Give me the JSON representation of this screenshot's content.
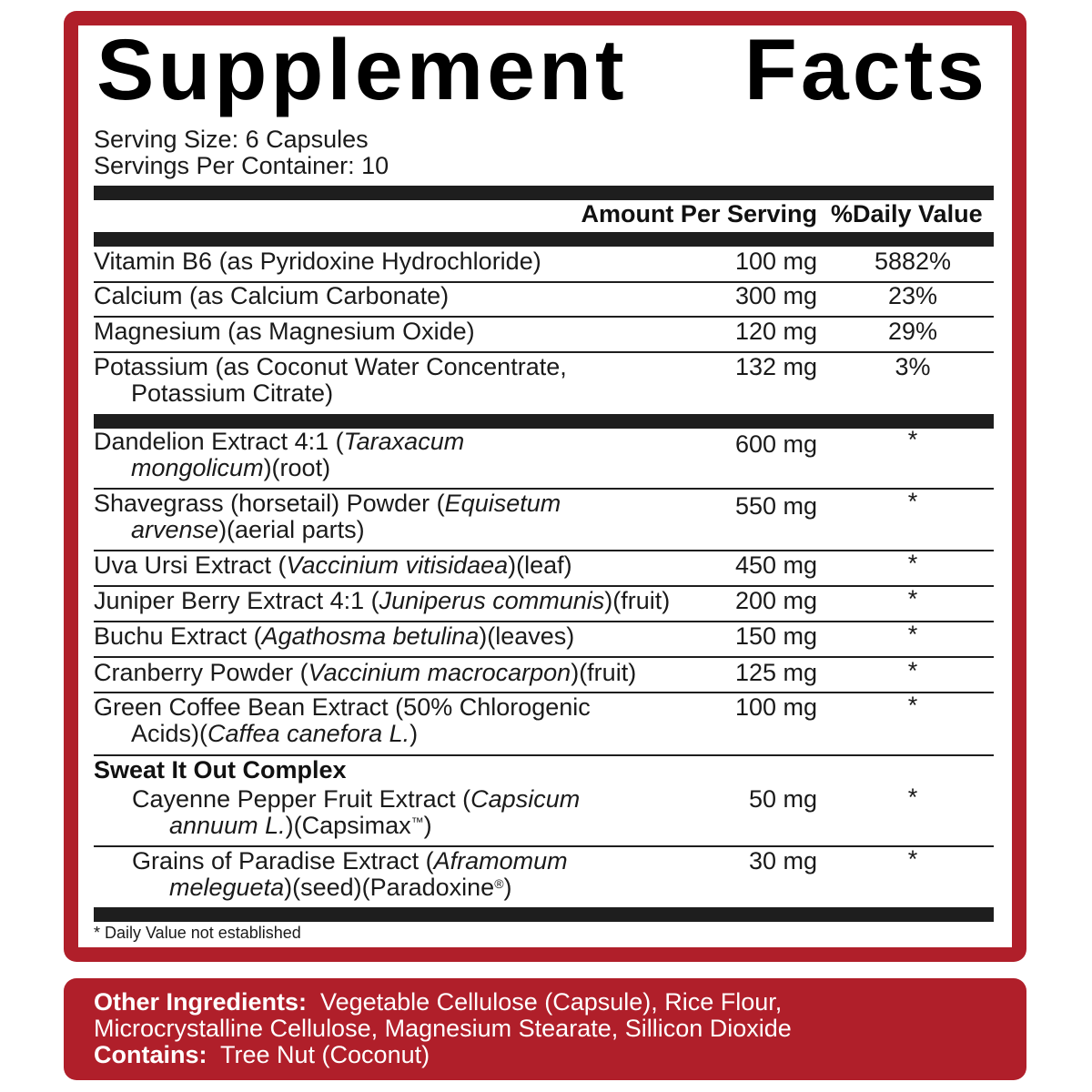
{
  "label": {
    "title": "Supplement Facts",
    "serving_size": "Serving Size: 6 Capsules",
    "servings_per_container": "Servings Per Container: 10",
    "header": {
      "amount": "Amount Per Serving",
      "daily_value": "%Daily Value"
    },
    "rows": [
      {
        "lines": [
          [
            {
              "t": "Vitamin B6 (as Pyridoxine Hydrochloride)"
            }
          ]
        ],
        "amount": "100 mg",
        "dv": "5882%"
      },
      {
        "lines": [
          [
            {
              "t": "Calcium (as Calcium Carbonate)"
            }
          ]
        ],
        "amount": "300 mg",
        "dv": "23%"
      },
      {
        "lines": [
          [
            {
              "t": "Magnesium (as Magnesium Oxide)"
            }
          ]
        ],
        "amount": "120 mg",
        "dv": "29%"
      },
      {
        "lines": [
          [
            {
              "t": "Potassium (as Coconut Water Concentrate,"
            }
          ],
          [
            {
              "t": "Potassium Citrate)"
            }
          ]
        ],
        "amount": "132 mg",
        "dv": "3%"
      },
      {
        "lines": [
          [
            {
              "t": "Dandelion Extract 4:1 ("
            },
            {
              "t": "Taraxacum",
              "i": true
            }
          ],
          [
            {
              "t": "mongolicum",
              "i": true
            },
            {
              "t": ")(root)"
            }
          ]
        ],
        "amount": "600 mg",
        "dv": "*"
      },
      {
        "lines": [
          [
            {
              "t": "Shavegrass (horsetail) Powder ("
            },
            {
              "t": "Equisetum",
              "i": true
            }
          ],
          [
            {
              "t": "arvense",
              "i": true
            },
            {
              "t": ")(aerial parts)"
            }
          ]
        ],
        "amount": "550 mg",
        "dv": "*"
      },
      {
        "lines": [
          [
            {
              "t": "Uva Ursi Extract ("
            },
            {
              "t": "Vaccinium vitisidaea",
              "i": true
            },
            {
              "t": ")(leaf)"
            }
          ]
        ],
        "amount": "450 mg",
        "dv": "*"
      },
      {
        "lines": [
          [
            {
              "t": "Juniper Berry Extract 4:1 ("
            },
            {
              "t": "Juniperus communis",
              "i": true
            },
            {
              "t": ")(fruit)"
            }
          ]
        ],
        "amount": "200 mg",
        "dv": "*"
      },
      {
        "lines": [
          [
            {
              "t": "Buchu Extract ("
            },
            {
              "t": "Agathosma betulina",
              "i": true
            },
            {
              "t": ")(leaves)"
            }
          ]
        ],
        "amount": "150 mg",
        "dv": "*"
      },
      {
        "lines": [
          [
            {
              "t": "Cranberry Powder ("
            },
            {
              "t": "Vaccinium macrocarpon",
              "i": true
            },
            {
              "t": ")(fruit)"
            }
          ]
        ],
        "amount": "125 mg",
        "dv": "*"
      },
      {
        "lines": [
          [
            {
              "t": "Green Coffee Bean Extract (50% Chlorogenic"
            }
          ],
          [
            {
              "t": "Acids)("
            },
            {
              "t": "Caffea canefora L.",
              "i": true
            },
            {
              "t": ")"
            }
          ]
        ],
        "amount": "100 mg",
        "dv": "*"
      },
      {
        "heading": "Sweat It Out Complex"
      },
      {
        "indent": true,
        "lines": [
          [
            {
              "t": "Cayenne Pepper Fruit Extract ("
            },
            {
              "t": "Capsicum",
              "i": true
            }
          ],
          [
            {
              "t": "annuum L.",
              "i": true
            },
            {
              "t": ")(Capsimax"
            },
            {
              "t": "™",
              "sup": true
            },
            {
              "t": ")"
            }
          ]
        ],
        "amount": "50 mg",
        "dv": "*"
      },
      {
        "indent": true,
        "lines": [
          [
            {
              "t": "Grains of Paradise Extract ("
            },
            {
              "t": "Aframomum",
              "i": true
            }
          ],
          [
            {
              "t": "melegueta",
              "i": true
            },
            {
              "t": ")(seed)(Paradoxine"
            },
            {
              "t": "®",
              "sup": true
            },
            {
              "t": ")"
            }
          ]
        ],
        "amount": "30 mg",
        "dv": "*"
      }
    ],
    "footnote": "* Daily Value not established"
  },
  "other_ingredients": {
    "label": "Other Ingredients:",
    "text_line1": "Vegetable Cellulose (Capsule), Rice Flour,",
    "text_line2": "Microcrystalline Cellulose, Magnesium Stearate, Sillicon Dioxide",
    "contains_label": "Contains:",
    "contains_text": "Tree Nut (Coconut)"
  },
  "colors": {
    "brand_red": "#b01f2a",
    "rule": "#1e1e1e"
  }
}
